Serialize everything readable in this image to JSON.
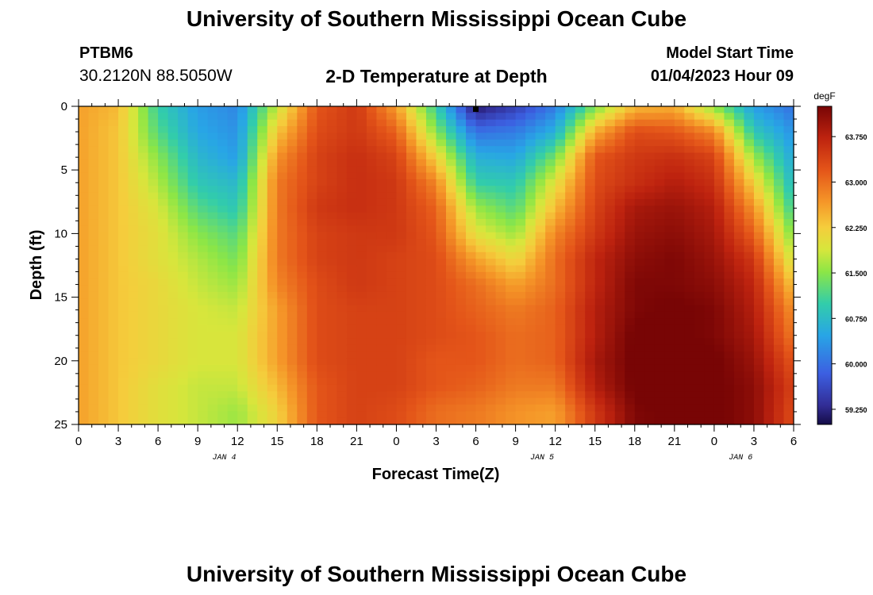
{
  "header": {
    "title": "University of Southern Mississippi Ocean Cube",
    "station": "PTBM6",
    "coords": "30.2120N  88.5050W",
    "subtitle": "2-D Temperature at Depth",
    "model_start_label": "Model Start Time",
    "model_start_value": "01/04/2023 Hour 09"
  },
  "footer": {
    "title": "University of Southern Mississippi Ocean Cube"
  },
  "chart_data": {
    "type": "heatmap",
    "title": "2-D Temperature at Depth",
    "xlabel": "Forecast Time(Z)",
    "ylabel": "Depth (ft)",
    "x_tick_labels": [
      "0",
      "3",
      "6",
      "9",
      "12",
      "15",
      "18",
      "21",
      "0",
      "3",
      "6",
      "9",
      "12",
      "15",
      "18",
      "21",
      "0",
      "3",
      "6"
    ],
    "x_range_hours": [
      0,
      54
    ],
    "date_labels": [
      {
        "label": "JAN 4",
        "hour": 11
      },
      {
        "label": "JAN 5",
        "hour": 35
      },
      {
        "label": "JAN 6",
        "hour": 50
      }
    ],
    "y_tick_labels": [
      "0",
      "5",
      "10",
      "15",
      "20",
      "25"
    ],
    "y_ticks": [
      0,
      5,
      10,
      15,
      20,
      25
    ],
    "ylim": [
      0,
      25
    ],
    "colorbar": {
      "unit": "degF",
      "tick_labels": [
        "63.750",
        "63.000",
        "62.250",
        "61.500",
        "60.750",
        "60.000",
        "59.250"
      ],
      "ticks": [
        63.75,
        63.0,
        62.25,
        61.5,
        60.75,
        60.0,
        59.25
      ],
      "range": [
        59.0,
        64.25
      ]
    },
    "grid_time_hours": [
      0,
      3,
      6,
      9,
      12,
      15,
      18,
      21,
      24,
      27,
      30,
      33,
      36,
      39,
      42,
      45,
      48,
      51,
      54
    ],
    "grid_depth_ft": [
      0,
      2,
      4,
      6,
      8,
      10,
      12,
      14,
      16,
      18,
      20,
      22,
      24,
      25
    ],
    "grid_values_degF": [
      [
        62.6,
        62.6,
        62.6,
        62.6,
        62.6,
        62.6,
        62.6,
        62.6,
        62.6,
        62.6,
        62.6,
        62.6,
        62.6,
        62.6
      ],
      [
        62.4,
        62.3,
        62.3,
        62.3,
        62.3,
        62.3,
        62.3,
        62.3,
        62.3,
        62.3,
        62.3,
        62.3,
        62.3,
        62.3
      ],
      [
        61.0,
        61.2,
        61.5,
        61.7,
        61.9,
        62.0,
        62.0,
        62.1,
        62.1,
        62.1,
        62.1,
        62.0,
        62.0,
        62.0
      ],
      [
        60.4,
        60.5,
        60.7,
        60.9,
        61.2,
        61.5,
        61.7,
        61.8,
        61.9,
        61.9,
        61.9,
        61.8,
        61.8,
        61.8
      ],
      [
        60.2,
        60.3,
        60.4,
        60.7,
        60.9,
        61.2,
        61.4,
        61.6,
        61.8,
        61.9,
        61.9,
        61.8,
        61.6,
        61.6
      ],
      [
        61.8,
        62.3,
        62.7,
        62.9,
        62.9,
        62.9,
        62.9,
        62.8,
        62.6,
        62.6,
        62.6,
        62.4,
        62.2,
        62.2
      ],
      [
        63.2,
        63.3,
        63.4,
        63.4,
        63.5,
        63.4,
        63.4,
        63.3,
        63.3,
        63.3,
        63.3,
        63.2,
        63.2,
        63.2
      ],
      [
        63.5,
        63.5,
        63.6,
        63.6,
        63.6,
        63.5,
        63.5,
        63.5,
        63.4,
        63.4,
        63.4,
        63.4,
        63.4,
        63.4
      ],
      [
        62.6,
        63.1,
        63.4,
        63.5,
        63.5,
        63.5,
        63.4,
        63.4,
        63.4,
        63.4,
        63.4,
        63.4,
        63.3,
        63.3
      ],
      [
        61.0,
        61.5,
        62.2,
        62.8,
        63.1,
        63.2,
        63.3,
        63.3,
        63.3,
        63.3,
        63.2,
        63.2,
        63.0,
        63.0
      ],
      [
        59.1,
        60.0,
        60.6,
        61.0,
        61.6,
        62.0,
        62.6,
        63.0,
        63.1,
        63.2,
        63.2,
        63.1,
        62.9,
        62.9
      ],
      [
        59.5,
        60.1,
        60.5,
        60.9,
        61.2,
        61.6,
        62.1,
        62.6,
        62.9,
        63.0,
        63.0,
        62.9,
        62.7,
        62.7
      ],
      [
        60.1,
        60.6,
        61.4,
        62.0,
        62.4,
        62.8,
        63.0,
        63.0,
        63.1,
        63.1,
        63.1,
        62.9,
        62.6,
        62.6
      ],
      [
        61.4,
        62.5,
        63.2,
        63.3,
        63.4,
        63.5,
        63.7,
        63.7,
        63.8,
        63.8,
        63.9,
        63.8,
        63.5,
        63.5
      ],
      [
        62.4,
        63.3,
        63.5,
        63.6,
        63.9,
        64.0,
        64.1,
        64.2,
        64.2,
        64.3,
        64.3,
        64.3,
        64.2,
        64.2
      ],
      [
        62.5,
        63.2,
        63.6,
        63.8,
        64.0,
        64.1,
        64.2,
        64.2,
        64.3,
        64.3,
        64.3,
        64.3,
        64.3,
        64.3
      ],
      [
        61.5,
        62.8,
        63.4,
        63.6,
        63.8,
        63.9,
        64.0,
        64.1,
        64.2,
        64.2,
        64.3,
        64.3,
        64.3,
        64.3
      ],
      [
        60.4,
        60.9,
        61.6,
        62.2,
        62.7,
        63.1,
        63.5,
        63.7,
        63.8,
        63.9,
        64.0,
        64.1,
        64.1,
        64.1
      ],
      [
        60.0,
        60.3,
        60.5,
        60.7,
        61.0,
        61.4,
        61.8,
        62.3,
        62.7,
        62.9,
        63.2,
        63.4,
        63.3,
        63.3
      ]
    ]
  }
}
